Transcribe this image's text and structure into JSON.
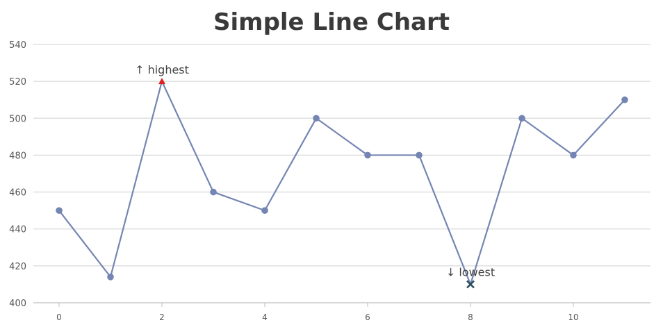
{
  "chart_data": {
    "type": "line",
    "title": "Simple Line Chart",
    "x": [
      0,
      1,
      2,
      3,
      4,
      5,
      6,
      7,
      8,
      9,
      10,
      11
    ],
    "series": [
      {
        "values": [
          450,
          414,
          520,
          460,
          450,
          500,
          480,
          480,
          410,
          500,
          480,
          510
        ],
        "color": "#7585b3"
      }
    ],
    "xlim": [
      -0.5,
      11.5
    ],
    "ylim": [
      400,
      540
    ],
    "xticks": [
      0,
      2,
      4,
      6,
      8,
      10
    ],
    "yticks": [
      400,
      420,
      440,
      460,
      480,
      500,
      520,
      540
    ],
    "grid": "horizontal",
    "annotations": [
      {
        "index": 2,
        "label": "↑ highest",
        "marker": "triangle",
        "color": "#e02020"
      },
      {
        "index": 8,
        "label": "↓ lowest",
        "marker": "cross",
        "color": "#2f4f5f"
      }
    ]
  }
}
